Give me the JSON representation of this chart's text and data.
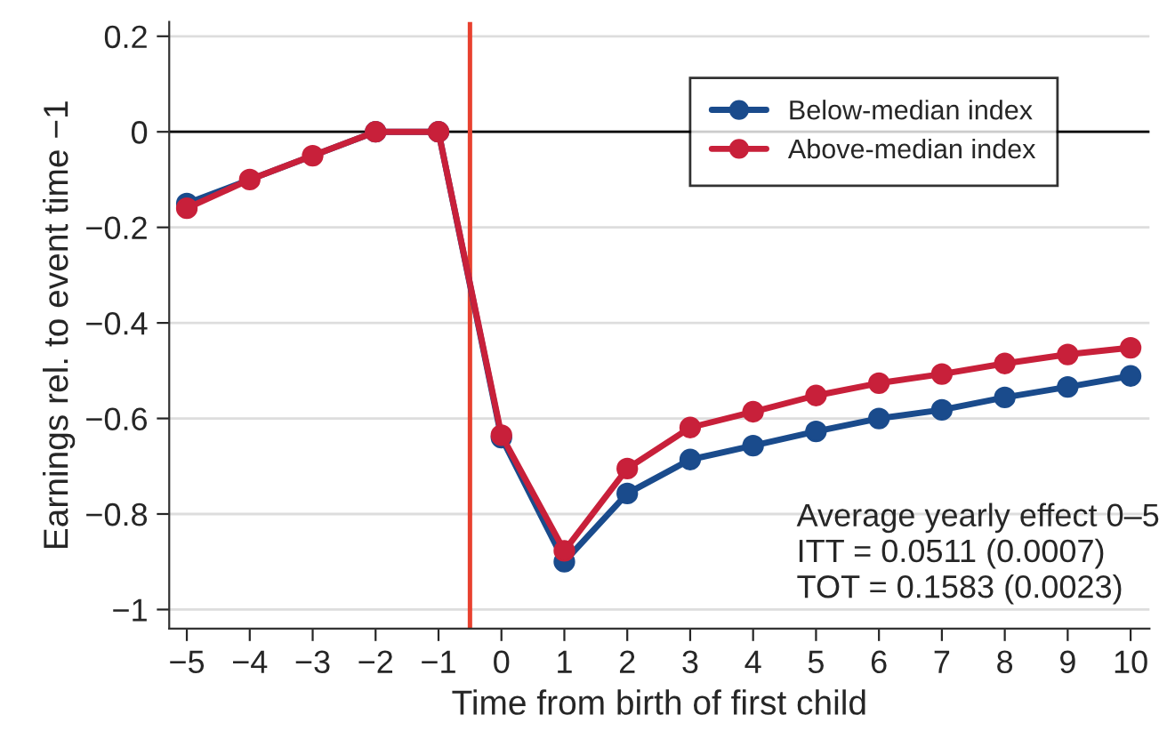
{
  "chart_data": {
    "type": "line",
    "xlabel": "Time from birth of first child",
    "ylabel": "Earnings rel. to event time −1",
    "x": [
      -5,
      -4,
      -3,
      -2,
      -1,
      0,
      1,
      2,
      3,
      4,
      5,
      6,
      7,
      8,
      9,
      10
    ],
    "series": [
      {
        "name": "Below-median index",
        "color": "#1a4b8c",
        "values": [
          -0.15,
          null,
          null,
          0,
          0,
          -0.64,
          -0.9,
          -0.757,
          -0.686,
          -0.657,
          -0.627,
          -0.6,
          -0.582,
          -0.556,
          -0.534,
          -0.511
        ]
      },
      {
        "name": "Above-median index",
        "color": "#c8203a",
        "values": [
          -0.16,
          -0.1,
          -0.05,
          0,
          0,
          -0.635,
          -0.877,
          -0.705,
          -0.619,
          -0.586,
          -0.552,
          -0.526,
          -0.507,
          -0.485,
          -0.466,
          -0.452
        ]
      }
    ],
    "xlim": [
      -5.28,
      10.3
    ],
    "ylim": [
      -1.04,
      0.23
    ],
    "xticks": [
      {
        "value": -5,
        "label": "−5"
      },
      {
        "value": -4,
        "label": "−4"
      },
      {
        "value": -3,
        "label": "−3"
      },
      {
        "value": -2,
        "label": "−2"
      },
      {
        "value": -1,
        "label": "−1"
      },
      0,
      1,
      2,
      3,
      4,
      5,
      6,
      7,
      8,
      9,
      10
    ],
    "yticks": [
      0.2,
      0,
      {
        "value": -0.2,
        "label": "−0.2"
      },
      {
        "value": -0.4,
        "label": "−0.4"
      },
      {
        "value": -0.6,
        "label": "−0.6"
      },
      {
        "value": -0.8,
        "label": "−0.8"
      },
      {
        "value": -1,
        "label": "−1"
      }
    ],
    "ref_lines": [
      {
        "axis": "y",
        "value": 0,
        "color": "#000000"
      },
      {
        "axis": "x",
        "value": -0.5,
        "color": "#e8412f"
      }
    ],
    "annotations": [
      "Average yearly effect 0–5\nITT = 0.0511 (0.0007)\nTOT = 0.1583 (0.0023)"
    ],
    "grid": "y",
    "legend": "top right",
    "marker": "circle",
    "line_style": "solid"
  }
}
